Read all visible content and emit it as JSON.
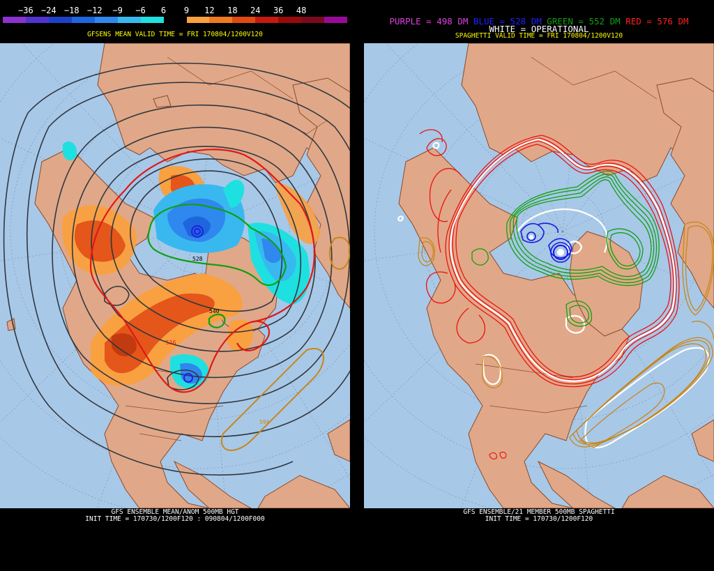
{
  "left": {
    "scale_labels": [
      "−36",
      "−24",
      "−18",
      "−12",
      "−9",
      "−6",
      "6",
      "9",
      "12",
      "18",
      "24",
      "36",
      "48"
    ],
    "scale_colors": [
      "#8a33d0",
      "#5233d0",
      "#1e40c8",
      "#1e66dd",
      "#2f88ee",
      "#39b8f0",
      "#1fe0e0",
      "#000000",
      "#f9a040",
      "#f07a20",
      "#e04a10",
      "#c61a10",
      "#9a0a0a",
      "#7a0a20",
      "#9a0a9a"
    ],
    "valid_time": "GFSENS MEAN VALID TIME = FRI 170804/1200V120",
    "caption_line1": "GFS ENSEMBLE MEAN/ANOM 500MB HGT",
    "caption_line2": "INIT TIME = 170730/1200F120 : 090804/1200F000",
    "contour_labels": [
      "528",
      "516",
      "594",
      "540"
    ]
  },
  "right": {
    "legend": [
      {
        "text": "PURPLE = 498 DM",
        "color": "#e040e0"
      },
      {
        "text": "BLUE = 528 DM",
        "color": "#2020ff"
      },
      {
        "text": "GREEN = 552 DM",
        "color": "#10a010"
      },
      {
        "text": "RED = 576 DM",
        "color": "#ff2020"
      }
    ],
    "white_label": "WHITE = OPERATIONAL",
    "valid_time": "SPAGHETTI VALID TIME = FRI 170804/1200V120",
    "caption_line1": "GFS ENSEMBLE/21 MEMBER 500MB SPAGHETTI",
    "caption_line2": "INIT TIME = 170730/1200F120"
  },
  "colors": {
    "ocean": "#a8c8e8",
    "land": "#e0a888",
    "border": "#8a4a2a",
    "grid": "#7890a8"
  }
}
